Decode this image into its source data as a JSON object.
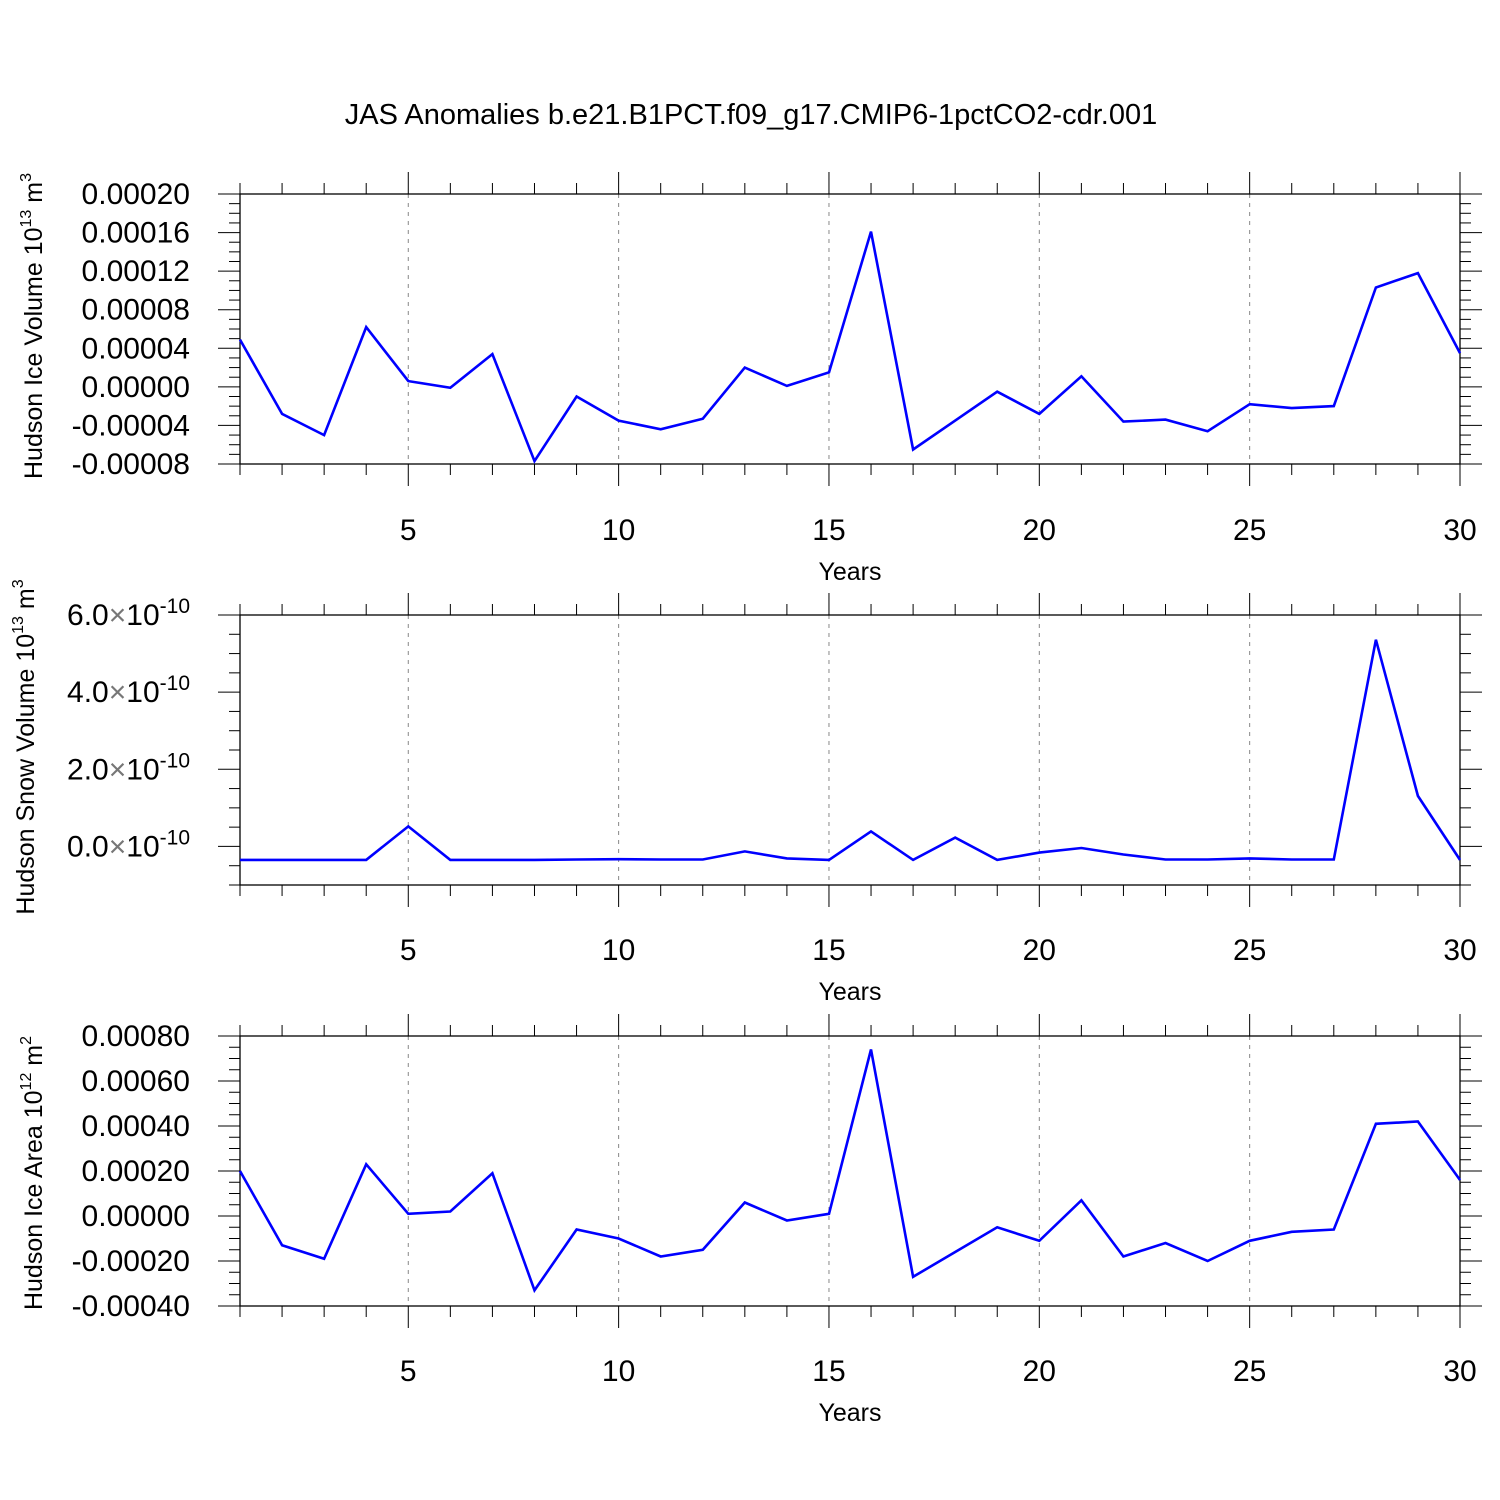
{
  "figure": {
    "title": "JAS Anomalies b.e21.B1PCT.f09_g17.CMIP6-1pctCO2-cdr.001"
  },
  "colors": {
    "line": "#0000ff",
    "axis": "#000000",
    "grid": "#888888"
  },
  "chart_data": [
    {
      "type": "line",
      "xlabel": "Years",
      "ylabel_text": "Hudson Ice Volume 10",
      "ylabel_exp": "13",
      "ylabel_unit": "m",
      "ylabel_unit_exp": "3",
      "xlim": [
        1,
        30
      ],
      "ylim": [
        -8e-05,
        0.0002
      ],
      "x_ticks": [
        5,
        10,
        15,
        20,
        25,
        30
      ],
      "y_ticks": [
        "0.00020",
        "0.00016",
        "0.00012",
        "0.00008",
        "0.00004",
        "0.00000",
        "-0.00004",
        "-0.00008"
      ],
      "grid": "dashed vertical at x ticks",
      "x": [
        1,
        2,
        3,
        4,
        5,
        6,
        7,
        8,
        9,
        10,
        11,
        12,
        13,
        14,
        15,
        16,
        17,
        18,
        19,
        20,
        21,
        22,
        23,
        24,
        25,
        26,
        27,
        28,
        29,
        30
      ],
      "values": [
        4.9e-05,
        -2.8e-05,
        -5e-05,
        6.2e-05,
        6e-06,
        -1e-06,
        3.4e-05,
        -7.7e-05,
        -1e-05,
        -3.5e-05,
        -4.4e-05,
        -3.3e-05,
        2e-05,
        1e-06,
        1.5e-05,
        0.000161,
        -6.5e-05,
        -3.5e-05,
        -5e-06,
        -2.8e-05,
        1.1e-05,
        -3.6e-05,
        -3.4e-05,
        -4.6e-05,
        -1.8e-05,
        -2.2e-05,
        -2e-05,
        0.000103,
        0.000118,
        3.5e-05
      ]
    },
    {
      "type": "line",
      "xlabel": "Years",
      "ylabel_text": "Hudson Snow Volume 10",
      "ylabel_exp": "13",
      "ylabel_unit": "m",
      "ylabel_unit_exp": "3",
      "xlim": [
        1,
        30
      ],
      "ylim": [
        -1e-10,
        6e-10
      ],
      "x_ticks": [
        5,
        10,
        15,
        20,
        25,
        30
      ],
      "y_ticks": [
        {
          "value": 6e-10,
          "mantissa": "6.0",
          "base": "10",
          "exp": "-10"
        },
        {
          "value": 4e-10,
          "mantissa": "4.0",
          "base": "10",
          "exp": "-10"
        },
        {
          "value": 2e-10,
          "mantissa": "2.0",
          "base": "10",
          "exp": "-10"
        },
        {
          "value": 0,
          "mantissa": "0.0",
          "base": "10",
          "exp": "-10"
        }
      ],
      "grid": "dashed vertical at x ticks",
      "x": [
        1,
        2,
        3,
        4,
        5,
        6,
        7,
        8,
        9,
        10,
        11,
        12,
        13,
        14,
        15,
        16,
        17,
        18,
        19,
        20,
        21,
        22,
        23,
        24,
        25,
        26,
        27,
        28,
        29,
        30
      ],
      "values": [
        -3.5e-11,
        -3.5e-11,
        -3.5e-11,
        -3.5e-11,
        5.2e-11,
        -3.5e-11,
        -3.5e-11,
        -3.5e-11,
        -3.4e-11,
        -3.3e-11,
        -3.4e-11,
        -3.4e-11,
        -1.3e-11,
        -3.1e-11,
        -3.5e-11,
        3.9e-11,
        -3.5e-11,
        2.3e-11,
        -3.5e-11,
        -1.6e-11,
        -4e-12,
        -2.1e-11,
        -3.4e-11,
        -3.4e-11,
        -3.1e-11,
        -3.4e-11,
        -3.4e-11,
        5.36e-10,
        1.31e-10,
        -3.5e-11
      ]
    },
    {
      "type": "line",
      "xlabel": "Years",
      "ylabel_text": "Hudson Ice Area 10",
      "ylabel_exp": "12",
      "ylabel_unit": "m",
      "ylabel_unit_exp": "2",
      "xlim": [
        1,
        30
      ],
      "ylim": [
        -0.0004,
        0.0008
      ],
      "x_ticks": [
        5,
        10,
        15,
        20,
        25,
        30
      ],
      "y_ticks": [
        "0.00080",
        "0.00060",
        "0.00040",
        "0.00020",
        "0.00000",
        "-0.00020",
        "-0.00040"
      ],
      "grid": "dashed vertical at x ticks",
      "x": [
        1,
        2,
        3,
        4,
        5,
        6,
        7,
        8,
        9,
        10,
        11,
        12,
        13,
        14,
        15,
        16,
        17,
        18,
        19,
        20,
        21,
        22,
        23,
        24,
        25,
        26,
        27,
        28,
        29,
        30
      ],
      "values": [
        0.0002,
        -0.00013,
        -0.00019,
        0.00023,
        1e-05,
        2e-05,
        0.00019,
        -0.00033,
        -6e-05,
        -0.0001,
        -0.00018,
        -0.00015,
        6e-05,
        -2e-05,
        1e-05,
        0.00074,
        -0.00027,
        -0.00016,
        -5e-05,
        -0.00011,
        7e-05,
        -0.00018,
        -0.00012,
        -0.0002,
        -0.00011,
        -7e-05,
        -6e-05,
        0.00041,
        0.00042,
        0.00016
      ]
    }
  ]
}
